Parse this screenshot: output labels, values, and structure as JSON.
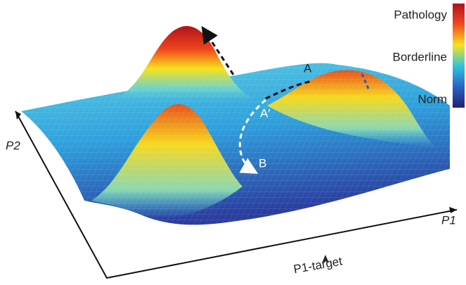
{
  "colorbar": {
    "labels": [
      "Pathology",
      "Borderline",
      "Norm"
    ]
  },
  "points": {
    "a": "A",
    "a_prime": "A′",
    "b": "B"
  },
  "axes": {
    "p2": "P2",
    "p1": "P1",
    "target": "P1-target"
  }
}
